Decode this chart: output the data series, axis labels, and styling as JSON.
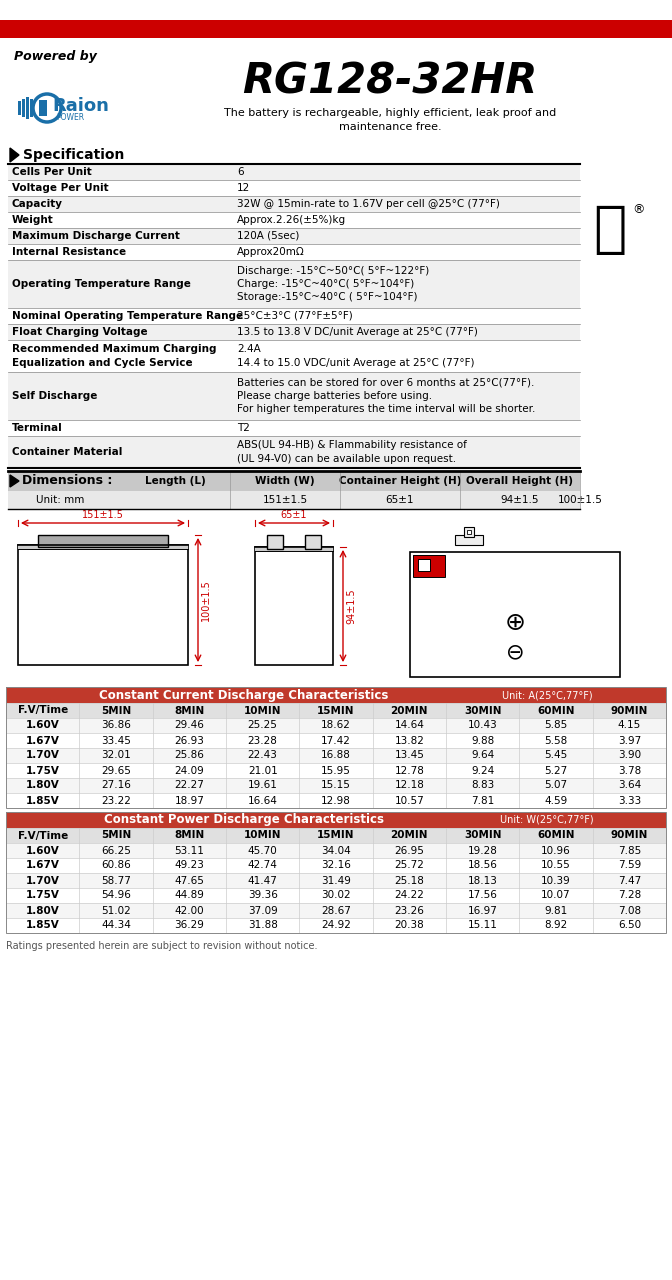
{
  "title": "RG128-32HR",
  "brand": "Raion",
  "brand_subtitle": "POWER",
  "powered_by": "Powered by",
  "tagline": "The battery is rechargeable, highly efficient, leak proof and\nmaintenance free.",
  "spec_title": "Specification",
  "specs": [
    [
      "Cells Per Unit",
      "6"
    ],
    [
      "Voltage Per Unit",
      "12"
    ],
    [
      "Capacity",
      "32W @ 15min-rate to 1.67V per cell @25°C (77°F)"
    ],
    [
      "Weight",
      "Approx.2.26(±5%)kg"
    ],
    [
      "Maximum Discharge Current",
      "120A (5sec)"
    ],
    [
      "Internal Resistance",
      "Approx20mΩ"
    ],
    [
      "Operating Temperature Range",
      "Discharge: -15°C~50°C( 5°F~122°F)\nCharge: -15°C~40°C( 5°F~104°F)\nStorage:-15°C~40°C ( 5°F~104°F)"
    ],
    [
      "Nominal Operating Temperature Range",
      "25°C±3°C (77°F±5°F)"
    ],
    [
      "Float Charging Voltage",
      "13.5 to 13.8 V DC/unit Average at 25°C (77°F)"
    ],
    [
      "Recommended Maximum Charging\nEqualization and Cycle Service",
      "2.4A\n14.4 to 15.0 VDC/unit Average at 25°C (77°F)"
    ],
    [
      "Self Discharge",
      "Batteries can be stored for over 6 months at 25°C(77°F).\nPlease charge batteries before using.\nFor higher temperatures the time interval will be shorter."
    ],
    [
      "Terminal",
      "T2"
    ],
    [
      "Container Material",
      "ABS(UL 94-HB) & Flammability resistance of\n(UL 94-V0) can be available upon request."
    ]
  ],
  "dim_title": "Dimensions :",
  "dim_headers": [
    "Length (L)",
    "Width (W)",
    "Container Height (H)",
    "Overall Height (H)"
  ],
  "dim_unit": "Unit: mm",
  "dim_values": [
    "151±1.5",
    "65±1",
    "94±1.5",
    "100±1.5"
  ],
  "cc_title": "Constant Current Discharge Characteristics",
  "cc_unit": "Unit: A(25°C,77°F)",
  "cc_headers": [
    "F.V/Time",
    "5MIN",
    "8MIN",
    "10MIN",
    "15MIN",
    "20MIN",
    "30MIN",
    "60MIN",
    "90MIN"
  ],
  "cc_data": [
    [
      "1.60V",
      36.86,
      29.46,
      25.25,
      18.62,
      14.64,
      10.43,
      5.85,
      4.15
    ],
    [
      "1.67V",
      33.45,
      26.93,
      23.28,
      17.42,
      13.82,
      9.88,
      5.58,
      3.97
    ],
    [
      "1.70V",
      32.01,
      25.86,
      22.43,
      16.88,
      13.45,
      9.64,
      5.45,
      3.9
    ],
    [
      "1.75V",
      29.65,
      24.09,
      21.01,
      15.95,
      12.78,
      9.24,
      5.27,
      3.78
    ],
    [
      "1.80V",
      27.16,
      22.27,
      19.61,
      15.15,
      12.18,
      8.83,
      5.07,
      3.64
    ],
    [
      "1.85V",
      23.22,
      18.97,
      16.64,
      12.98,
      10.57,
      7.81,
      4.59,
      3.33
    ]
  ],
  "cp_title": "Constant Power Discharge Characteristics",
  "cp_unit": "Unit: W(25°C,77°F)",
  "cp_headers": [
    "F.V/Time",
    "5MIN",
    "8MIN",
    "10MIN",
    "15MIN",
    "20MIN",
    "30MIN",
    "60MIN",
    "90MIN"
  ],
  "cp_data": [
    [
      "1.60V",
      66.25,
      53.11,
      45.7,
      34.04,
      26.95,
      19.28,
      10.96,
      7.85
    ],
    [
      "1.67V",
      60.86,
      49.23,
      42.74,
      32.16,
      25.72,
      18.56,
      10.55,
      7.59
    ],
    [
      "1.70V",
      58.77,
      47.65,
      41.47,
      31.49,
      25.18,
      18.13,
      10.39,
      7.47
    ],
    [
      "1.75V",
      54.96,
      44.89,
      39.36,
      30.02,
      24.22,
      17.56,
      10.07,
      7.28
    ],
    [
      "1.80V",
      51.02,
      42.0,
      37.09,
      28.67,
      23.26,
      16.97,
      9.81,
      7.08
    ],
    [
      "1.85V",
      44.34,
      36.29,
      31.88,
      24.92,
      20.38,
      15.11,
      8.92,
      6.5
    ]
  ],
  "footer": "Ratings presented herein are subject to revision without notice.",
  "red_color": "#cc0000",
  "table_header_bg": "#c0392b",
  "blue_color": "#1a6fa8"
}
